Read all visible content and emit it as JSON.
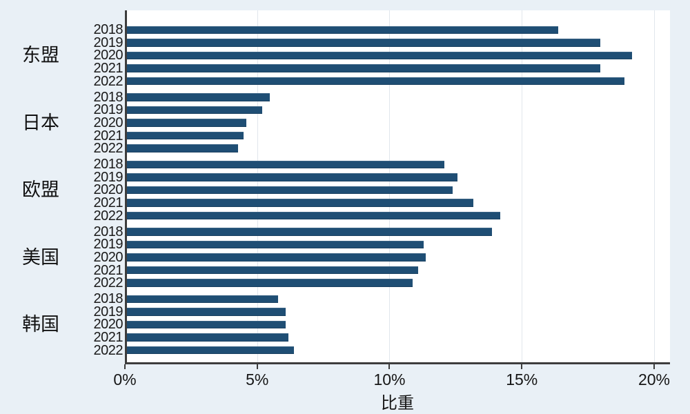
{
  "chart_data": {
    "type": "bar",
    "orientation": "horizontal",
    "title": "",
    "xlabel": "比重",
    "ylabel": "",
    "categories": [
      "东盟",
      "日本",
      "欧盟",
      "美国",
      "韩国"
    ],
    "subcategories": [
      "2018",
      "2019",
      "2020",
      "2021",
      "2022"
    ],
    "series": [
      {
        "name": "东盟",
        "values": [
          16.3,
          17.9,
          19.1,
          17.9,
          18.8
        ]
      },
      {
        "name": "日本",
        "values": [
          5.4,
          5.1,
          4.5,
          4.4,
          4.2
        ]
      },
      {
        "name": "欧盟",
        "values": [
          12.0,
          12.5,
          12.3,
          13.1,
          14.1
        ]
      },
      {
        "name": "美国",
        "values": [
          13.8,
          11.2,
          11.3,
          11.0,
          10.8
        ]
      },
      {
        "name": "韩国",
        "values": [
          5.7,
          6.0,
          6.0,
          6.1,
          6.3
        ]
      }
    ],
    "xticks": [
      0,
      5,
      10,
      15,
      20
    ],
    "xtick_labels": [
      "0%",
      "5%",
      "10%",
      "15%",
      "20%"
    ],
    "xlim": [
      0,
      20.6
    ],
    "grid": true,
    "legend": "none",
    "bar_color": "#1f4e74",
    "plot_bg": "#ffffff",
    "page_bg": "#e9f0f6"
  }
}
